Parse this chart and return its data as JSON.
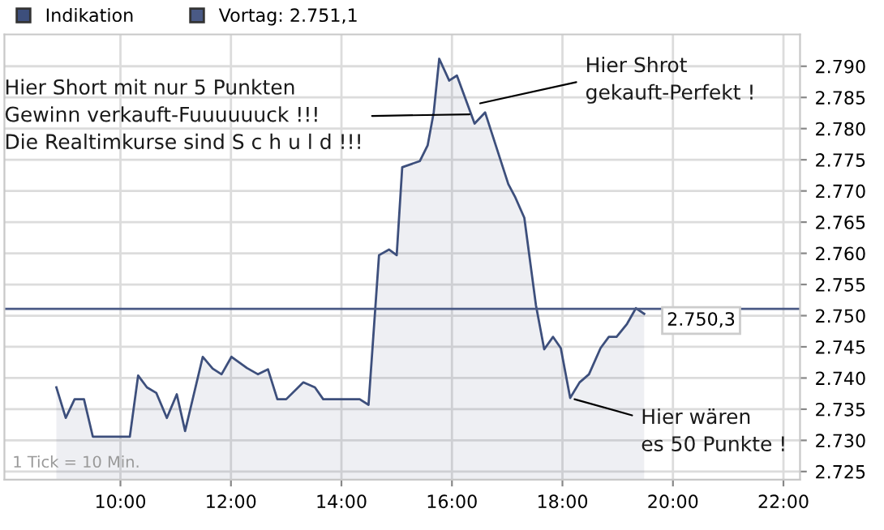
{
  "chart_data": {
    "type": "area",
    "legend": "top left",
    "grid": true,
    "marker": "none",
    "line_style": "solid",
    "xlim": [
      7.9,
      22.3
    ],
    "xticks": [
      {
        "value": 10,
        "label": "10:00"
      },
      {
        "value": 12,
        "label": "12:00"
      },
      {
        "value": 14,
        "label": "14:00"
      },
      {
        "value": 16,
        "label": "16:00"
      },
      {
        "value": 18,
        "label": "18:00"
      },
      {
        "value": 20,
        "label": "20:00"
      },
      {
        "value": 22,
        "label": "22:00"
      }
    ],
    "ylim": [
      2723.7,
      2795.1
    ],
    "yticks": [
      {
        "value": 2725,
        "label": "2.725"
      },
      {
        "value": 2730,
        "label": "2.730"
      },
      {
        "value": 2735,
        "label": "2.735"
      },
      {
        "value": 2740,
        "label": "2.740"
      },
      {
        "value": 2745,
        "label": "2.745"
      },
      {
        "value": 2750,
        "label": "2.750"
      },
      {
        "value": 2755,
        "label": "2.755"
      },
      {
        "value": 2760,
        "label": "2.760"
      },
      {
        "value": 2765,
        "label": "2.765"
      },
      {
        "value": 2770,
        "label": "2.770"
      },
      {
        "value": 2775,
        "label": "2.775"
      },
      {
        "value": 2780,
        "label": "2.780"
      },
      {
        "value": 2785,
        "label": "2.785"
      },
      {
        "value": 2790,
        "label": "2.790"
      }
    ],
    "x": [
      8.84,
      9.01,
      9.17,
      9.34,
      9.5,
      10.17,
      10.32,
      10.48,
      10.65,
      10.84,
      11.02,
      11.17,
      11.49,
      11.67,
      11.83,
      12.01,
      12.29,
      12.49,
      12.67,
      12.84,
      13.0,
      13.31,
      13.52,
      13.67,
      14.33,
      14.49,
      14.68,
      14.86,
      15.0,
      15.1,
      15.42,
      15.56,
      15.67,
      15.77,
      15.95,
      16.09,
      16.41,
      16.6,
      17.02,
      17.14,
      17.31,
      17.52,
      17.67,
      17.83,
      17.97,
      18.14,
      18.31,
      18.48,
      18.69,
      18.84,
      18.98,
      19.17,
      19.33,
      19.48
    ],
    "series": [
      {
        "name": "Indikation",
        "color": "#3d4f7c",
        "values": [
          2738.5,
          2733.6,
          2736.6,
          2736.6,
          2730.6,
          2730.6,
          2740.4,
          2738.5,
          2737.6,
          2733.6,
          2737.4,
          2731.5,
          2743.4,
          2741.5,
          2740.6,
          2743.4,
          2741.6,
          2740.6,
          2741.4,
          2736.6,
          2736.6,
          2739.3,
          2738.5,
          2736.6,
          2736.6,
          2735.7,
          2759.7,
          2760.6,
          2759.7,
          2773.8,
          2774.8,
          2777.3,
          2782.6,
          2791.2,
          2787.7,
          2788.5,
          2780.8,
          2782.6,
          2771.1,
          2769.1,
          2765.7,
          2751.7,
          2744.6,
          2746.6,
          2744.8,
          2736.8,
          2739.3,
          2740.6,
          2744.8,
          2746.6,
          2746.6,
          2748.7,
          2751.2,
          2750.3
        ],
        "value_labels": [
          null,
          null,
          null,
          null,
          null,
          null,
          null,
          null,
          null,
          null,
          null,
          null,
          null,
          null,
          null,
          null,
          null,
          null,
          null,
          null,
          null,
          null,
          null,
          null,
          null,
          null,
          null,
          null,
          null,
          null,
          null,
          null,
          null,
          null,
          null,
          null,
          null,
          null,
          null,
          null,
          null,
          null,
          null,
          null,
          null,
          null,
          null,
          null,
          null,
          null,
          null,
          null,
          null,
          "2.750,3"
        ]
      }
    ],
    "ref_lines": [
      {
        "axis": "y",
        "value": 2751.1,
        "label": "Vortag: 2.751,1",
        "color": "#4a5a85"
      }
    ],
    "annotations": [
      {
        "text": "Hier Short mit nur 5 Punkten\nGewinn verkauft-Fuuuuuuck !!!\nDie Realtimkurse sind S c h u l d !!!",
        "x": 16.4,
        "y": 2782.3
      },
      {
        "text": "Hier Shrot\ngekauft-Perfekt !",
        "x": 16.43,
        "y": 2783.9
      },
      {
        "text": "Hier wären\nes 50 Punkte !",
        "x": 18.14,
        "y": 2736.8
      },
      "1 Tick = 10 Min."
    ]
  }
}
